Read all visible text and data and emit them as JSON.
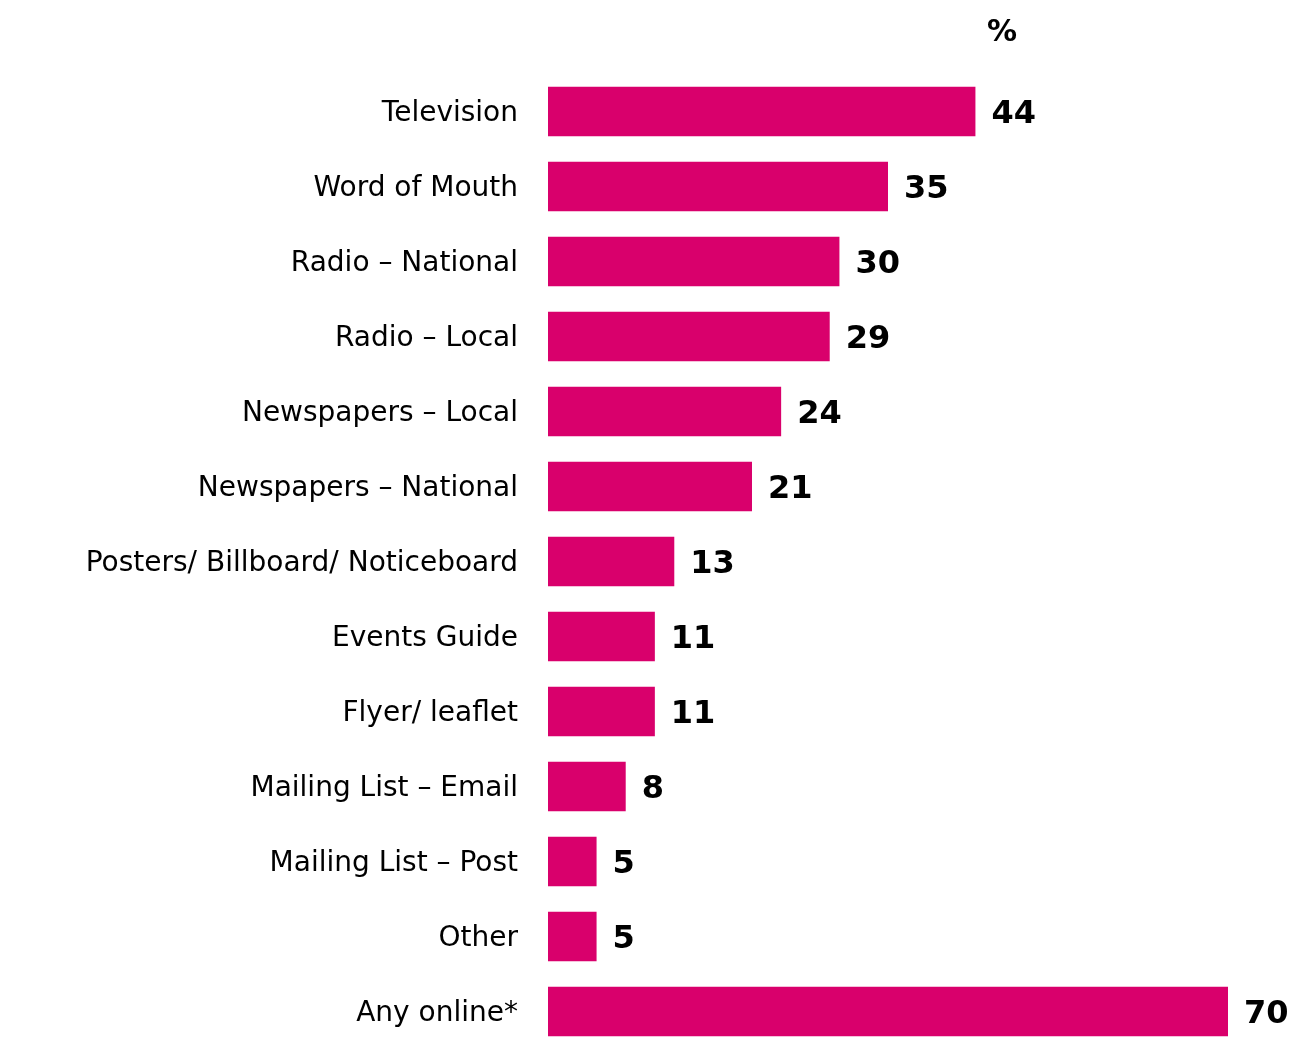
{
  "chart_data": {
    "type": "bar",
    "orientation": "horizontal",
    "title": "%",
    "categories": [
      "Television",
      "Word of Mouth",
      "Radio – National",
      "Radio – Local",
      "Newspapers – Local",
      "Newspapers – National",
      "Posters/ Billboard/ Noticeboard",
      "Events Guide",
      "Flyer/ leaflet",
      "Mailing List – Email",
      "Mailing List – Post",
      "Other",
      "Any online*"
    ],
    "values": [
      44,
      35,
      30,
      29,
      24,
      21,
      13,
      11,
      11,
      8,
      5,
      5,
      70
    ],
    "color": "#d9006c",
    "data_labels": true
  }
}
